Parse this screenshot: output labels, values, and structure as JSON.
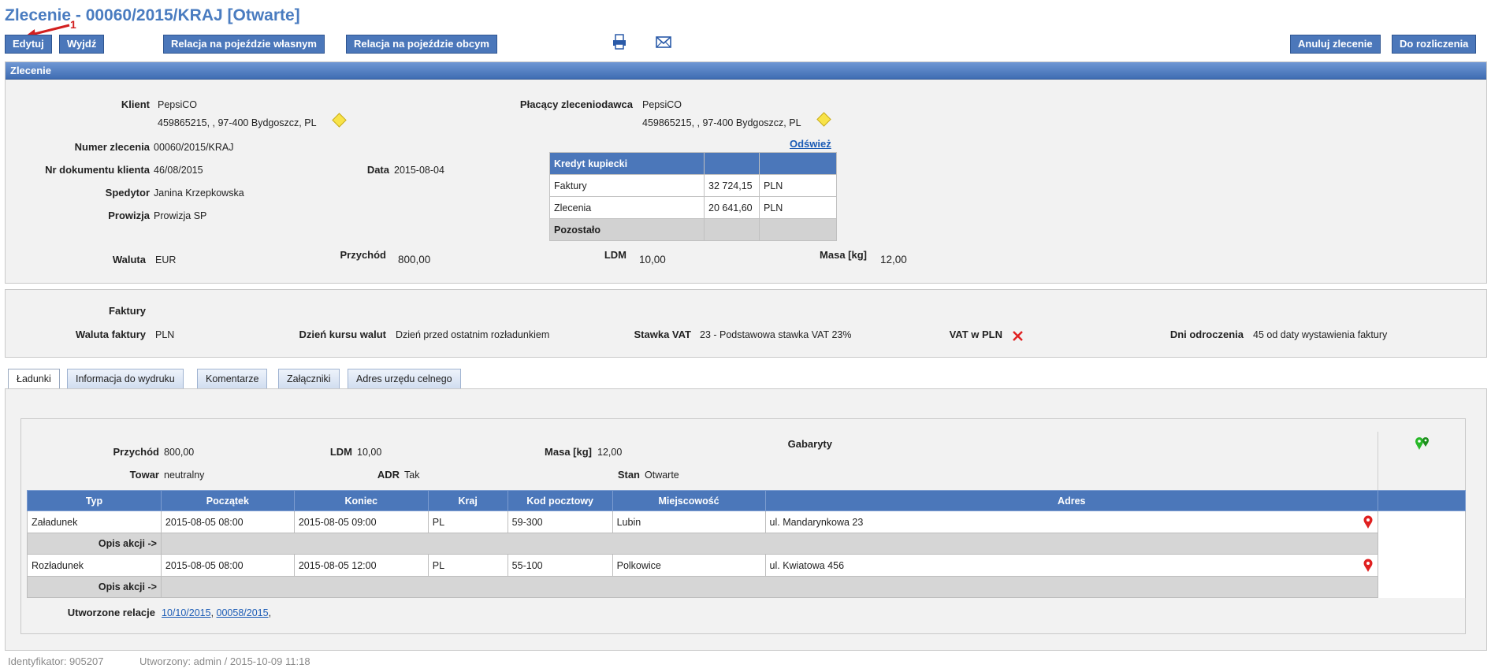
{
  "page_title": "Zlecenie - 00060/2015/KRAJ [Otwarte]",
  "annotation_number": "1",
  "toolbar": {
    "edit": "Edytuj",
    "exit": "Wyjdź",
    "own_vehicle": "Relacja na pojeździe własnym",
    "other_vehicle": "Relacja na pojeździe obcym",
    "cancel": "Anuluj zlecenie",
    "settle": "Do rozliczenia"
  },
  "zlecenie": {
    "header": "Zlecenie",
    "klient_label": "Klient",
    "klient_name": "PepsiCO",
    "klient_address": "459865215, , 97-400 Bydgoszcz, PL",
    "platnik_label": "Płacący zleceniodawca",
    "platnik_name": "PepsiCO",
    "platnik_address": "459865215, , 97-400 Bydgoszcz, PL",
    "refresh": "Odśwież",
    "numer_label": "Numer zlecenia",
    "numer": "00060/2015/KRAJ",
    "nr_dok_label": "Nr dokumentu klienta",
    "nr_dok": "46/08/2015",
    "data_label": "Data",
    "data": "2015-08-04",
    "spedytor_label": "Spedytor",
    "spedytor": "Janina Krzepkowska",
    "prowizja_label": "Prowizja",
    "prowizja": "Prowizja SP",
    "waluta_label": "Waluta",
    "waluta": "EUR",
    "przychod_label": "Przychód",
    "przychod": "800,00",
    "ldm_label": "LDM",
    "ldm": "10,00",
    "masa_label": "Masa [kg]",
    "masa": "12,00",
    "kredyt": {
      "header": "Kredyt kupiecki",
      "rows": [
        {
          "name": "Faktury",
          "amount": "32 724,15",
          "currency": "PLN"
        },
        {
          "name": "Zlecenia",
          "amount": "20 641,60",
          "currency": "PLN"
        }
      ],
      "remaining": "Pozostało"
    }
  },
  "faktury": {
    "title": "Faktury",
    "waluta_label": "Waluta faktury",
    "waluta": "PLN",
    "dzien_label": "Dzień kursu walut",
    "dzien": "Dzień przed ostatnim rozładunkiem",
    "stawka_label": "Stawka VAT",
    "stawka": "23 - Podstawowa stawka VAT 23%",
    "vat_pln_label": "VAT w PLN",
    "dni_label": "Dni odroczenia",
    "dni": "45 od daty wystawienia faktury"
  },
  "tabs": [
    "Ładunki",
    "Informacja do wydruku",
    "Komentarze",
    "Załączniki",
    "Adres urzędu celnego"
  ],
  "ladunek": {
    "przychod_label": "Przychód",
    "przychod": "800,00",
    "ldm_label": "LDM",
    "ldm": "10,00",
    "masa_label": "Masa [kg]",
    "masa": "12,00",
    "gabaryty_label": "Gabaryty",
    "towar_label": "Towar",
    "towar": "neutralny",
    "adr_label": "ADR",
    "adr": "Tak",
    "stan_label": "Stan",
    "stan": "Otwarte",
    "columns": [
      "Typ",
      "Początek",
      "Koniec",
      "Kraj",
      "Kod pocztowy",
      "Miejscowość",
      "Adres"
    ],
    "rows": [
      {
        "typ": "Załadunek",
        "poczatek": "2015-08-05 08:00",
        "koniec": "2015-08-05 09:00",
        "kraj": "PL",
        "kod": "59-300",
        "miasto": "Lubin",
        "adres": "ul. Mandarynkowa 23"
      },
      {
        "typ": "Rozładunek",
        "poczatek": "2015-08-05 08:00",
        "koniec": "2015-08-05 12:00",
        "kraj": "PL",
        "kod": "55-100",
        "miasto": "Polkowice",
        "adres": "ul. Kwiatowa 456"
      }
    ],
    "opis_label": "Opis akcji ->",
    "relacje_label": "Utworzone relacje",
    "relacje": [
      "10/10/2015",
      "00058/2015"
    ]
  },
  "footer": {
    "id": "Identyfikator: 905207",
    "created": "Utworzony: admin / 2015-10-09 11:18"
  },
  "icons": {
    "print": "printer-icon",
    "mail": "envelope-icon",
    "diamond": "warning-diamond-icon",
    "vat_false": "red-x-icon",
    "pin": "map-pin-icon",
    "route": "route-pins-icon"
  },
  "colors": {
    "title": "#4a7cc0",
    "button": "#4b77ba",
    "header": "#3f6db3",
    "pin": "#e02020",
    "route": "#28b828"
  }
}
